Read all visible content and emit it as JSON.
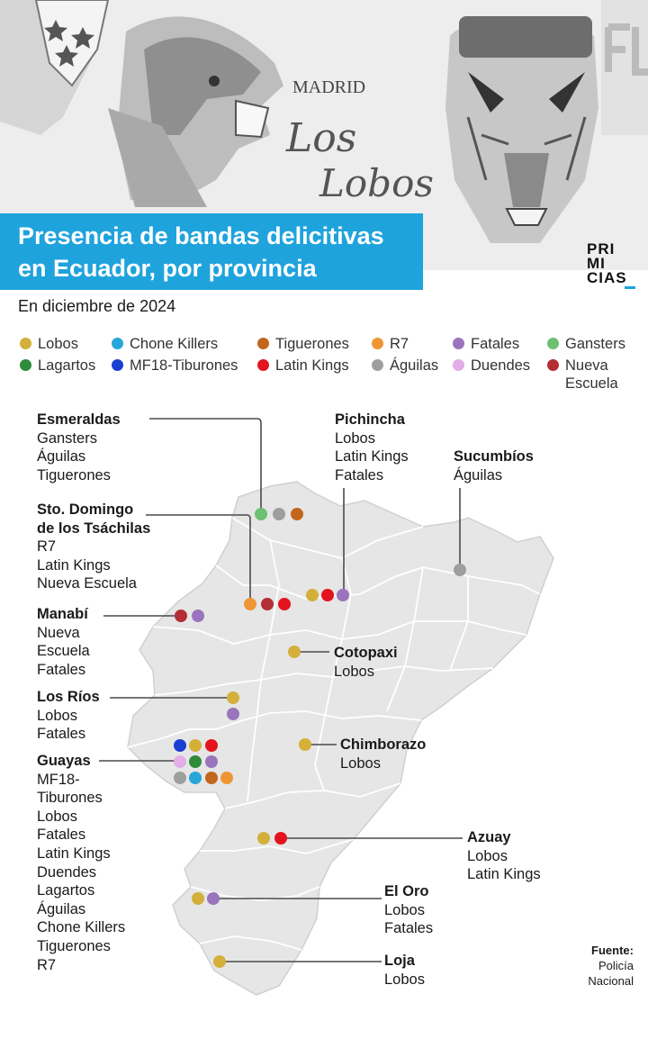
{
  "header": {
    "title_lines": [
      "Presencia de bandas delicitivas",
      "en Ecuador, por provincia"
    ],
    "subtitle": "En diciembre de 2024",
    "logo_lines": [
      "PRI",
      "MI",
      "CIAS"
    ],
    "banner_text_madrid": "MADRID",
    "banner_text_los": "Los",
    "banner_text_lobos": "Lobos"
  },
  "colors": {
    "title_bg": "#1fa3dd",
    "Lobos": "#d4b03a",
    "Chone Killers": "#27a6d8",
    "Tiguerones": "#c2661c",
    "R7": "#ef9634",
    "Fatales": "#9a74bd",
    "Gansters": "#6cc070",
    "Lagartos": "#2e8b3a",
    "MF18-Tiburones": "#1b3fd1",
    "Latin Kings": "#e3141d",
    "Águilas": "#9e9e9e",
    "Duendes": "#e3aee6",
    "Nueva Escuela": "#b32f35",
    "map_fill": "#e6e6e6",
    "map_border": "#ffffff"
  },
  "legend": [
    {
      "key": "Lobos",
      "label": "Lobos"
    },
    {
      "key": "Chone Killers",
      "label": "Chone Killers"
    },
    {
      "key": "Tiguerones",
      "label": "Tiguerones"
    },
    {
      "key": "R7",
      "label": "R7"
    },
    {
      "key": "Fatales",
      "label": "Fatales"
    },
    {
      "key": "Gansters",
      "label": "Gansters"
    },
    {
      "key": "Lagartos",
      "label": "Lagartos"
    },
    {
      "key": "MF18-Tiburones",
      "label": "MF18-Tiburones"
    },
    {
      "key": "Latin Kings",
      "label": "Latin Kings"
    },
    {
      "key": "Águilas",
      "label": "Águilas"
    },
    {
      "key": "Duendes",
      "label": "Duendes"
    },
    {
      "key": "Nueva Escuela",
      "label": "Nueva Escuela",
      "label_lines": [
        "Nueva",
        "Escuela"
      ]
    }
  ],
  "provinces": [
    {
      "id": "esmeraldas",
      "name": "Esmeraldas",
      "gangs": [
        "Gansters",
        "Águilas",
        "Tiguerones"
      ]
    },
    {
      "id": "pichincha",
      "name": "Pichincha",
      "gangs": [
        "Lobos",
        "Latin Kings",
        "Fatales"
      ]
    },
    {
      "id": "sucumbios",
      "name": "Sucumbíos",
      "gangs": [
        "Águilas"
      ]
    },
    {
      "id": "santo-domingo",
      "name": "Sto. Domingo de los Tsáchilas",
      "name_lines": [
        "Sto. Domingo",
        "de los Tsáchilas"
      ],
      "gangs": [
        "R7",
        "Latin Kings",
        "Nueva Escuela"
      ]
    },
    {
      "id": "manabi",
      "name": "Manabí",
      "gangs": [
        "Nueva Escuela",
        "Fatales"
      ],
      "gang_lines": [
        "Nueva",
        "Escuela",
        "Fatales"
      ]
    },
    {
      "id": "cotopaxi",
      "name": "Cotopaxi",
      "gangs": [
        "Lobos"
      ]
    },
    {
      "id": "los-rios",
      "name": "Los Ríos",
      "gangs": [
        "Lobos",
        "Fatales"
      ]
    },
    {
      "id": "chimborazo",
      "name": "Chimborazo",
      "gangs": [
        "Lobos"
      ]
    },
    {
      "id": "guayas",
      "name": "Guayas",
      "gangs": [
        "MF18-Tiburones",
        "Lobos",
        "Fatales",
        "Latin Kings",
        "Duendes",
        "Lagartos",
        "Águilas",
        "Chone Killers",
        "Tiguerones",
        "R7"
      ],
      "gang_lines": [
        "MF18-",
        "Tiburones",
        "Lobos",
        "Fatales",
        "Latin Kings",
        "Duendes",
        "Lagartos",
        "Águilas",
        "Chone Killers",
        "Tiguerones",
        "R7"
      ]
    },
    {
      "id": "azuay",
      "name": "Azuay",
      "gangs": [
        "Lobos",
        "Latin Kings"
      ]
    },
    {
      "id": "el-oro",
      "name": "El Oro",
      "gangs": [
        "Lobos",
        "Fatales"
      ]
    },
    {
      "id": "loja",
      "name": "Loja",
      "gangs": [
        "Lobos"
      ]
    }
  ],
  "source": {
    "label": "Fuente:",
    "lines": [
      "Policía",
      "Nacional"
    ]
  }
}
